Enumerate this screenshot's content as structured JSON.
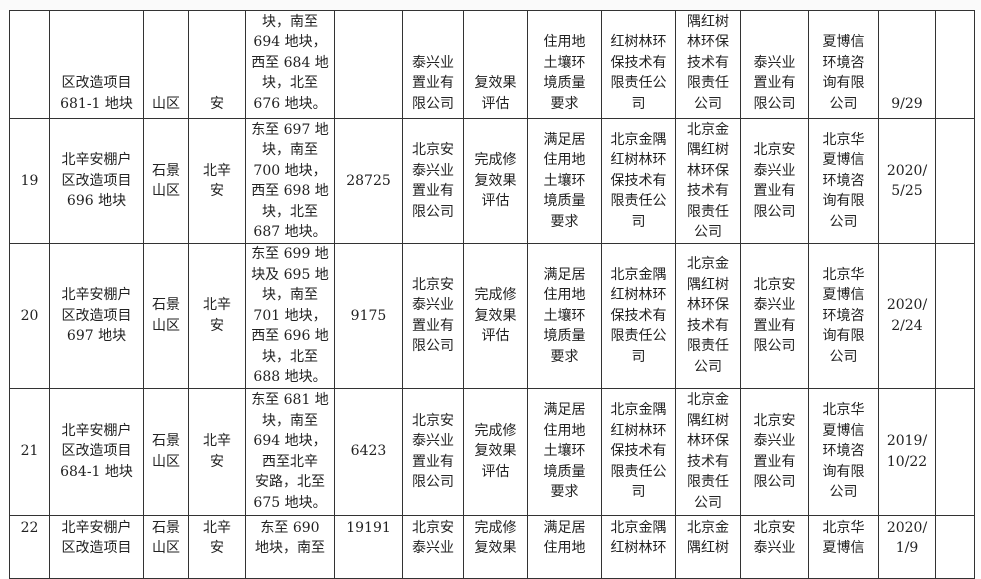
{
  "table": {
    "rows": [
      {
        "cells": [
          "",
          "区改造项目\n681-1 地块",
          "山区",
          "安",
          "块，南至\n694 地块，\n西至 684 地\n块，北至\n676 地块。",
          "",
          "泰兴业\n置业有\n限公司",
          "复效果\n评估",
          "住用地\n土壤环\n境质量\n要求",
          "红树林环\n保技术有\n限责任公\n司",
          "隅红树\n林环保\n技术有\n限责任\n公司",
          "泰兴业\n置业有\n限公司",
          "夏博信\n环境咨\n询有限\n公司",
          "9/29",
          ""
        ]
      },
      {
        "cells": [
          "19",
          "北辛安棚户\n区改造项目\n696 地块",
          "石景\n山区",
          "北辛\n安",
          "东至 697 地\n块，南至\n700 地块，\n西至 698 地\n块，北至\n687 地块。",
          "28725",
          "北京安\n泰兴业\n置业有\n限公司",
          "完成修\n复效果\n评估",
          "满足居\n住用地\n土壤环\n境质量\n要求",
          "北京金隅\n红树林环\n保技术有\n限责任公\n司",
          "北京金\n隅红树\n林环保\n技术有\n限责任\n公司",
          "北京安\n泰兴业\n置业有\n限公司",
          "北京华\n夏博信\n环境咨\n询有限\n公司",
          "2020/\n5/25",
          ""
        ]
      },
      {
        "cells": [
          "20",
          "北辛安棚户\n区改造项目\n697 地块",
          "石景\n山区",
          "北辛\n安",
          "东至 699 地\n块及 695 地\n块，南至\n701 地块，\n西至 696 地\n块，北至\n688 地块。",
          "9175",
          "北京安\n泰兴业\n置业有\n限公司",
          "完成修\n复效果\n评估",
          "满足居\n住用地\n土壤环\n境质量\n要求",
          "北京金隅\n红树林环\n保技术有\n限责任公\n司",
          "北京金\n隅红树\n林环保\n技术有\n限责任\n公司",
          "北京安\n泰兴业\n置业有\n限公司",
          "北京华\n夏博信\n环境咨\n询有限\n公司",
          "2020/\n2/24",
          ""
        ]
      },
      {
        "cells": [
          "21",
          "北辛安棚户\n区改造项目\n684-1 地块",
          "石景\n山区",
          "北辛\n安",
          "东至 681 地\n块，南至\n694 地块，\n西至北辛\n安路，北至\n675 地块。",
          "6423",
          "北京安\n泰兴业\n置业有\n限公司",
          "完成修\n复效果\n评估",
          "满足居\n住用地\n土壤环\n境质量\n要求",
          "北京金隅\n红树林环\n保技术有\n限责任公\n司",
          "北京金\n隅红树\n林环保\n技术有\n限责任\n公司",
          "北京安\n泰兴业\n置业有\n限公司",
          "北京华\n夏博信\n环境咨\n询有限\n公司",
          "2019/\n10/22",
          ""
        ]
      },
      {
        "cells": [
          "22",
          "北辛安棚户\n区改造项目",
          "石景\n山区",
          "北辛\n安",
          "东至 690\n地块，南至",
          "19191",
          "北京安\n泰兴业",
          "完成修\n复效果",
          "满足居\n住用地",
          "北京金隅\n红树林环",
          "北京金\n隅红树",
          "北京安\n泰兴业",
          "北京华\n夏博信",
          "2020/\n1/9",
          ""
        ]
      }
    ]
  }
}
